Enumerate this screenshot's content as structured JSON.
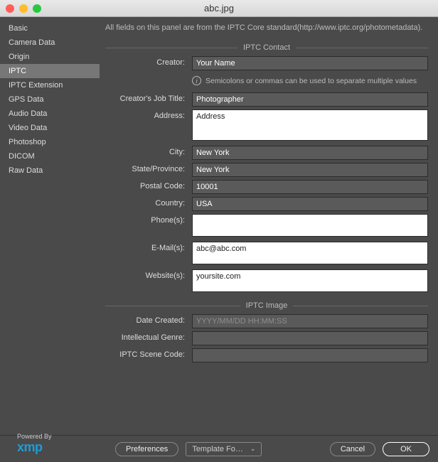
{
  "window": {
    "title": "abc.jpg"
  },
  "traffic_colors": {
    "close": "#ff5f57",
    "min": "#febc2e",
    "max": "#28c840"
  },
  "sidebar": {
    "items": [
      {
        "label": "Basic"
      },
      {
        "label": "Camera Data"
      },
      {
        "label": "Origin"
      },
      {
        "label": "IPTC"
      },
      {
        "label": "IPTC Extension"
      },
      {
        "label": "GPS Data"
      },
      {
        "label": "Audio Data"
      },
      {
        "label": "Video Data"
      },
      {
        "label": "Photoshop"
      },
      {
        "label": "DICOM"
      },
      {
        "label": "Raw Data"
      }
    ],
    "selected_index": 3
  },
  "panel": {
    "hint": "All fields on this panel are from the IPTC Core standard(http://www.iptc.org/photometadata).",
    "sections": {
      "contact": {
        "title": "IPTC Contact",
        "creator": {
          "label": "Creator:",
          "value": "Your Name"
        },
        "info_note": "Semicolons or commas can be used to separate multiple values",
        "job_title": {
          "label": "Creator's Job Title:",
          "value": "Photographer"
        },
        "address": {
          "label": "Address:",
          "value": "Address"
        },
        "city": {
          "label": "City:",
          "value": "New York"
        },
        "state": {
          "label": "State/Province:",
          "value": "New York"
        },
        "postal": {
          "label": "Postal Code:",
          "value": "10001"
        },
        "country": {
          "label": "Country:",
          "value": "USA"
        },
        "phones": {
          "label": "Phone(s):",
          "value": ""
        },
        "emails": {
          "label": "E-Mail(s):",
          "value": "abc@abc.com"
        },
        "websites": {
          "label": "Website(s):",
          "value": "yoursite.com"
        }
      },
      "image": {
        "title": "IPTC Image",
        "date_created": {
          "label": "Date Created:",
          "placeholder": "YYYY/MM/DD HH:MM:SS",
          "value": ""
        },
        "genre": {
          "label": "Intellectual Genre:",
          "value": ""
        },
        "scene_code": {
          "label": "IPTC Scene Code:",
          "value": ""
        }
      }
    }
  },
  "footer": {
    "powered_by": "Powered By",
    "logo": "xmp",
    "preferences": "Preferences",
    "template": "Template Fo…",
    "cancel": "Cancel",
    "ok": "OK"
  }
}
